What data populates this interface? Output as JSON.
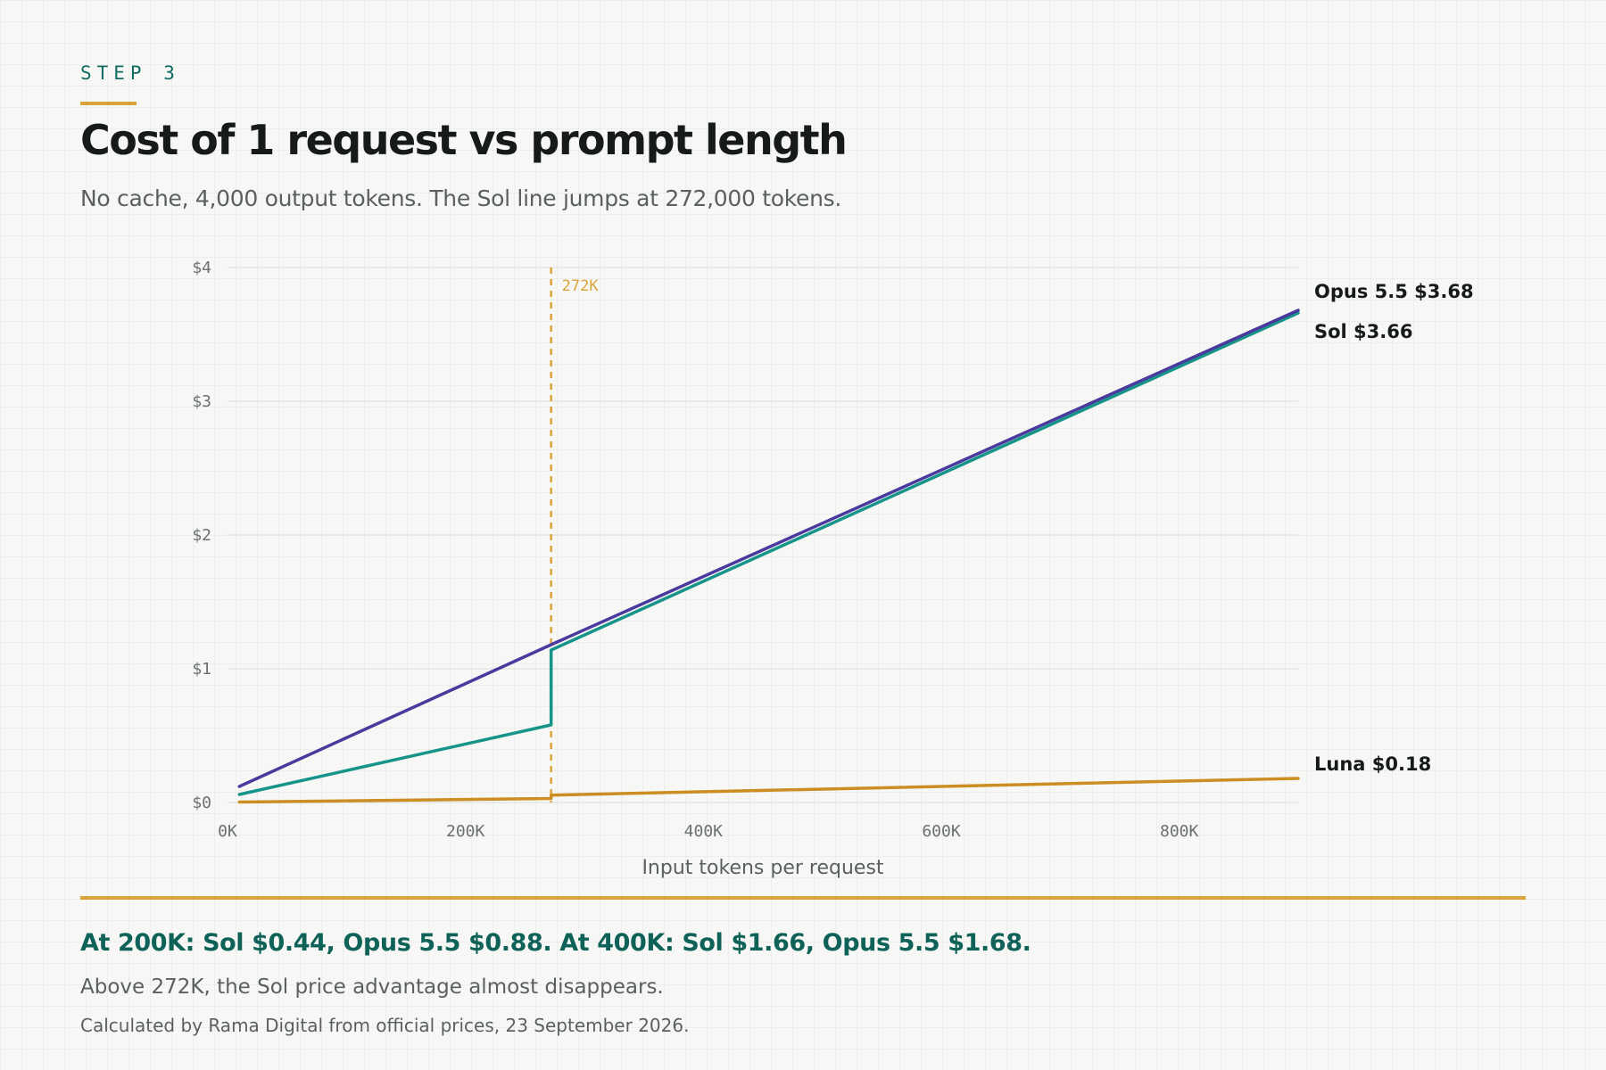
{
  "header": {
    "step": "STEP 3",
    "title": "Cost of 1 request vs prompt length",
    "subtitle": "No cache, 4,000 output tokens. The Sol line jumps at 272,000 tokens."
  },
  "footer": {
    "takeaway": "At 200K: Sol $0.44, Opus 5.5 $0.88. At 400K: Sol $1.66, Opus 5.5 $1.68.",
    "note": "Above 272K, the Sol price advantage almost disappears.",
    "source": "Calculated by Rama Digital from official prices, 23 September 2026."
  },
  "colors": {
    "accent": "#dba43b",
    "title_teal": "#0f6258"
  },
  "chart_data": {
    "type": "line",
    "title": "Cost of 1 request vs prompt length",
    "xlabel": "Input tokens per request",
    "ylabel": "",
    "xlim": [
      0,
      900000
    ],
    "ylim": [
      0,
      4
    ],
    "x_ticks": [
      {
        "value": 0,
        "label": "0K"
      },
      {
        "value": 200000,
        "label": "200K"
      },
      {
        "value": 400000,
        "label": "400K"
      },
      {
        "value": 600000,
        "label": "600K"
      },
      {
        "value": 800000,
        "label": "800K"
      }
    ],
    "y_ticks": [
      {
        "value": 0,
        "label": "$0"
      },
      {
        "value": 1,
        "label": "$1"
      },
      {
        "value": 2,
        "label": "$2"
      },
      {
        "value": 3,
        "label": "$3"
      },
      {
        "value": 4,
        "label": "$4"
      }
    ],
    "grid": "horizontal",
    "series": [
      {
        "name": "Opus 5.5",
        "color": "#4b3a9e",
        "end_label": "Opus 5.5 $3.68",
        "points": [
          [
            10000,
            0.12
          ],
          [
            272000,
            1.18
          ],
          [
            900000,
            3.68
          ]
        ]
      },
      {
        "name": "Sol",
        "color": "#17948a",
        "end_label": "Sol $3.66",
        "points": [
          [
            10000,
            0.06
          ],
          [
            272000,
            0.58
          ],
          [
            272000,
            1.14
          ],
          [
            900000,
            3.66
          ]
        ]
      },
      {
        "name": "Luna",
        "color": "#cc8d22",
        "end_label": "Luna $0.18",
        "points": [
          [
            10000,
            0.003
          ],
          [
            272000,
            0.03
          ],
          [
            272000,
            0.055
          ],
          [
            900000,
            0.18
          ]
        ]
      }
    ],
    "annotations": [
      {
        "type": "vline",
        "x": 272000,
        "label": "272K",
        "color": "#dba43b",
        "style": "dashed"
      }
    ]
  }
}
